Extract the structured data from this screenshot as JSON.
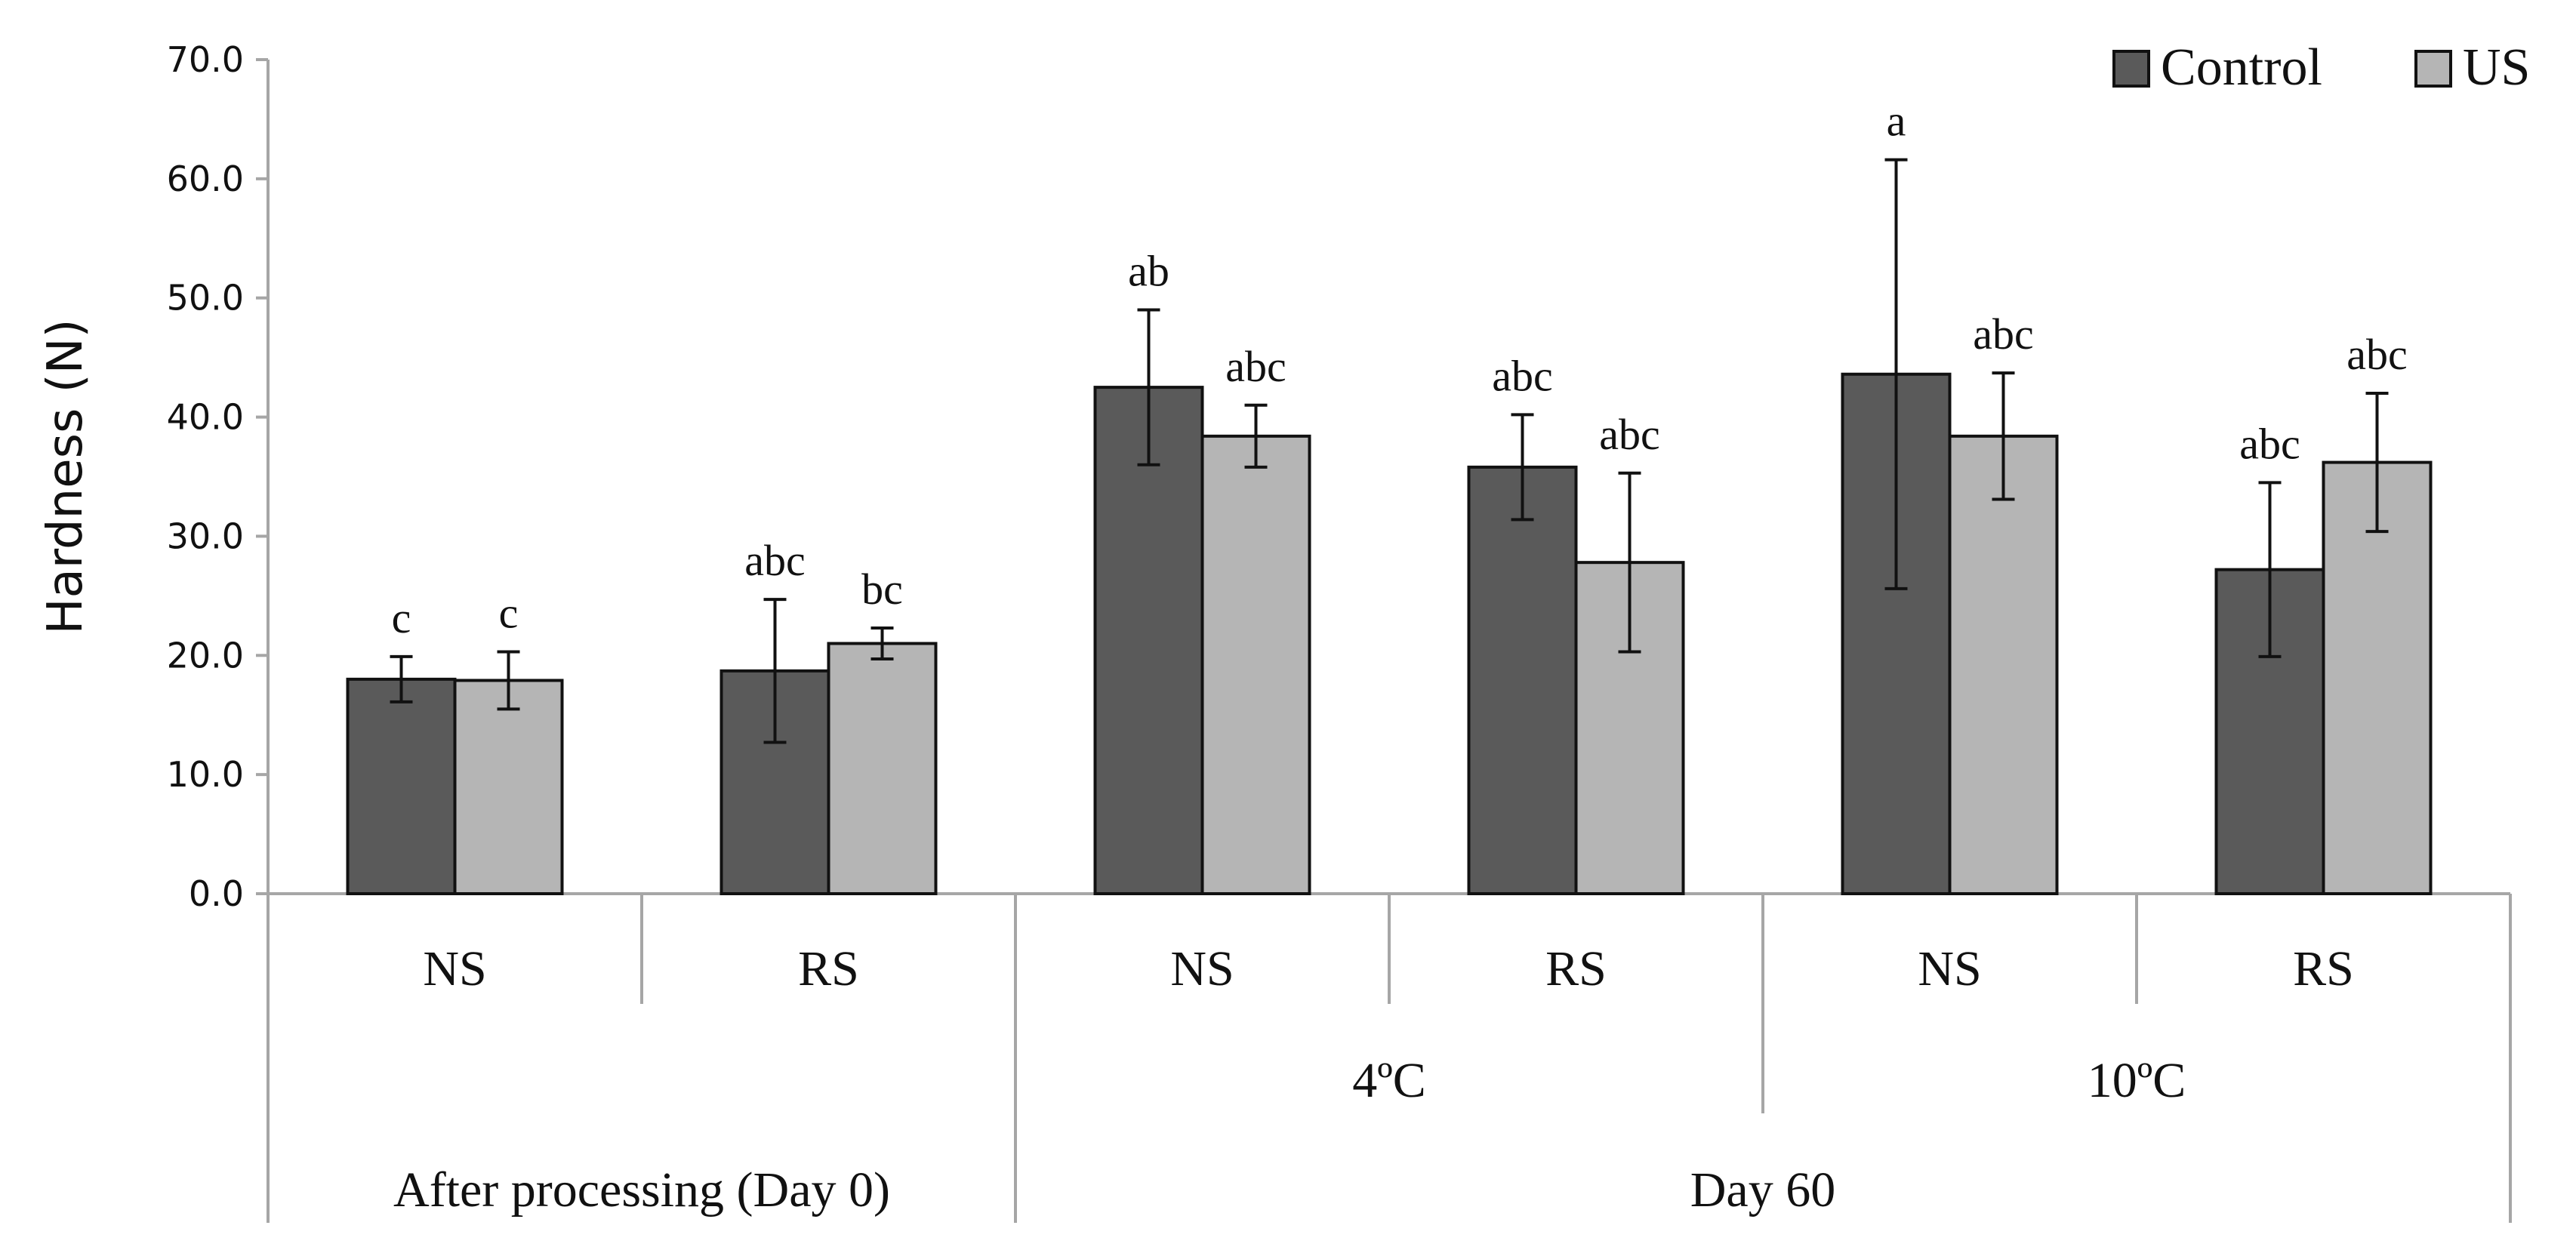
{
  "chart_data": {
    "type": "bar",
    "title": "",
    "xlabel": "",
    "ylabel": "Hardness (N)",
    "ylim": [
      0,
      70
    ],
    "ytick_step": 10,
    "ytick_labels": [
      "0.0",
      "10.0",
      "20.0",
      "30.0",
      "40.0",
      "50.0",
      "60.0",
      "70.0"
    ],
    "grid": false,
    "legend_position": "top-right",
    "categories": [
      "NS",
      "RS",
      "NS",
      "RS",
      "NS",
      "RS"
    ],
    "storage_groups": [
      {
        "label": "4ºC",
        "categories": [
          2,
          3
        ]
      },
      {
        "label": "10ºC",
        "categories": [
          4,
          5
        ]
      }
    ],
    "time_groups": [
      {
        "label": "After processing (Day 0)",
        "categories": [
          0,
          1
        ]
      },
      {
        "label": "Day 60",
        "categories": [
          2,
          3,
          4,
          5
        ]
      }
    ],
    "series": [
      {
        "name": "Control",
        "color": "#5a5a5a",
        "values": [
          18.0,
          18.7,
          42.5,
          35.8,
          43.6,
          27.2
        ],
        "errors": [
          1.9,
          6.0,
          6.5,
          4.4,
          18.0,
          7.3
        ],
        "labels": [
          "c",
          "abc",
          "ab",
          "abc",
          "a",
          "abc"
        ]
      },
      {
        "name": "US",
        "color": "#b5b5b5",
        "values": [
          17.9,
          21.0,
          38.4,
          27.8,
          38.4,
          36.2
        ],
        "errors": [
          2.4,
          1.3,
          2.6,
          7.5,
          5.3,
          5.8
        ],
        "labels": [
          "c",
          "bc",
          "abc",
          "abc",
          "abc",
          "abc"
        ]
      }
    ]
  }
}
